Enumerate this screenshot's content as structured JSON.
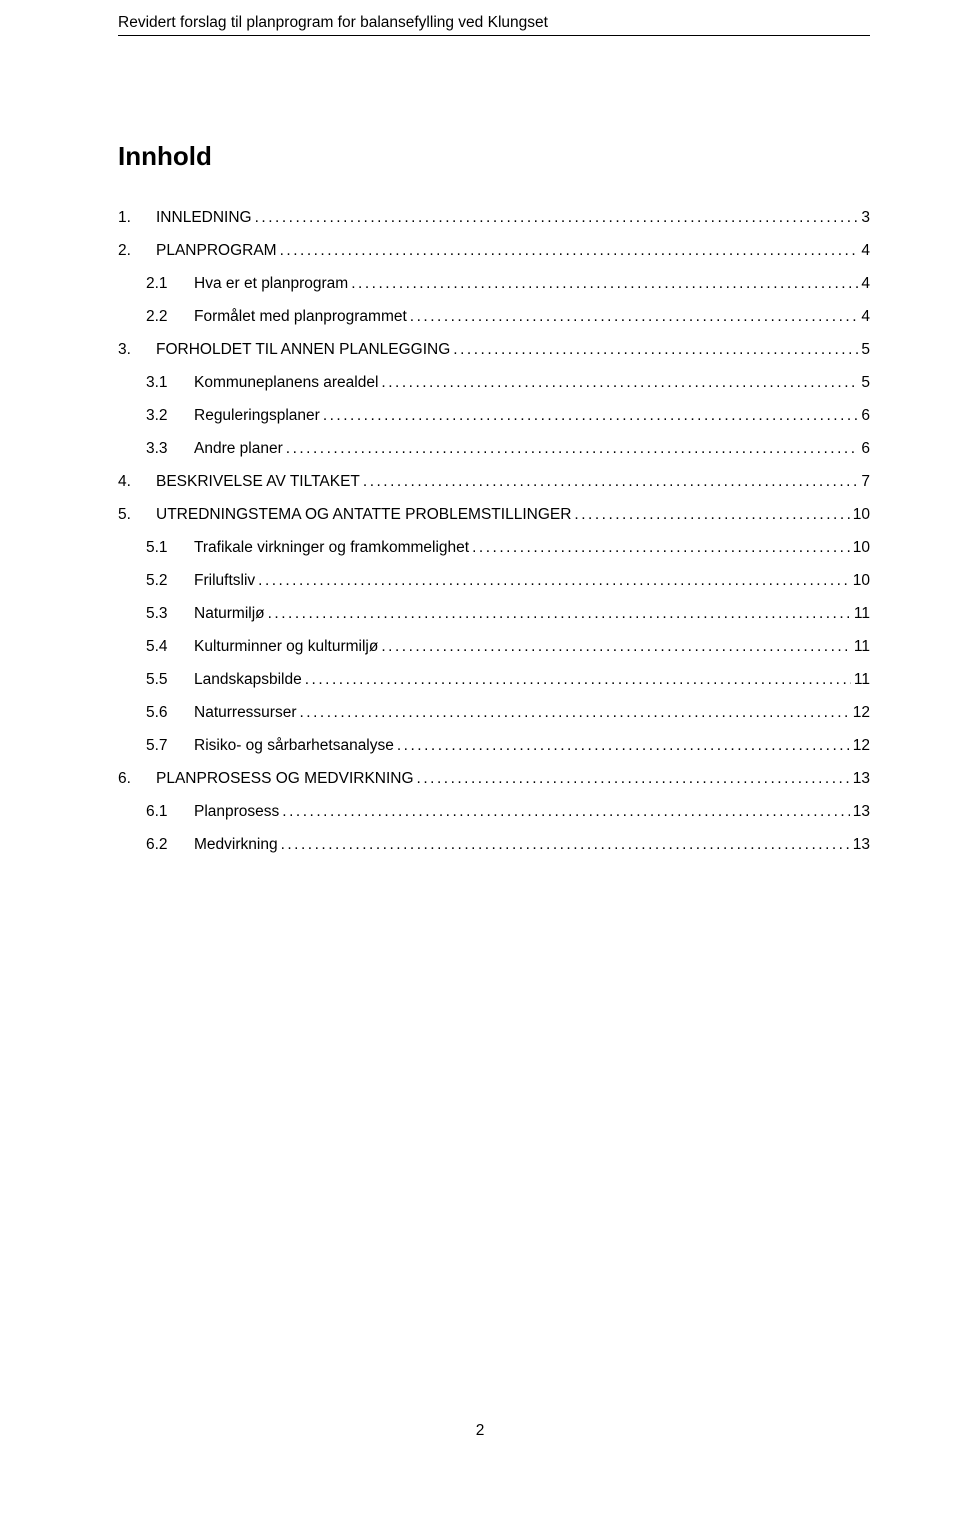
{
  "header": "Revidert forslag til planprogram for balansefylling ved Klungset",
  "title": "Innhold",
  "toc": [
    {
      "level": 1,
      "num": "1.",
      "label": "INNLEDNING",
      "page": "3"
    },
    {
      "level": 1,
      "num": "2.",
      "label": "PLANPROGRAM",
      "page": "4"
    },
    {
      "level": 2,
      "num": "2.1",
      "label": "Hva er et planprogram",
      "page": "4"
    },
    {
      "level": 2,
      "num": "2.2",
      "label": "Formålet med planprogrammet",
      "page": "4"
    },
    {
      "level": 1,
      "num": "3.",
      "label": "FORHOLDET TIL ANNEN PLANLEGGING",
      "page": "5"
    },
    {
      "level": 2,
      "num": "3.1",
      "label": "Kommuneplanens arealdel",
      "page": "5"
    },
    {
      "level": 2,
      "num": "3.2",
      "label": "Reguleringsplaner",
      "page": "6"
    },
    {
      "level": 2,
      "num": "3.3",
      "label": "Andre planer",
      "page": "6"
    },
    {
      "level": 1,
      "num": "4.",
      "label": "BESKRIVELSE AV TILTAKET",
      "page": "7"
    },
    {
      "level": 1,
      "num": "5.",
      "label": "UTREDNINGSTEMA OG ANTATTE PROBLEMSTILLINGER",
      "page": "10"
    },
    {
      "level": 2,
      "num": "5.1",
      "label": "Trafikale virkninger og framkommelighet",
      "page": "10"
    },
    {
      "level": 2,
      "num": "5.2",
      "label": "Friluftsliv",
      "page": "10"
    },
    {
      "level": 2,
      "num": "5.3",
      "label": "Naturmiljø",
      "page": "11"
    },
    {
      "level": 2,
      "num": "5.4",
      "label": "Kulturminner og kulturmiljø",
      "page": "11"
    },
    {
      "level": 2,
      "num": "5.5",
      "label": "Landskapsbilde",
      "page": "11"
    },
    {
      "level": 2,
      "num": "5.6",
      "label": "Naturressurser",
      "page": "12"
    },
    {
      "level": 2,
      "num": "5.7",
      "label": "Risiko- og sårbarhetsanalyse",
      "page": "12"
    },
    {
      "level": 1,
      "num": "6.",
      "label": "PLANPROSESS OG MEDVIRKNING",
      "page": "13"
    },
    {
      "level": 2,
      "num": "6.1",
      "label": "Planprosess",
      "page": "13"
    },
    {
      "level": 2,
      "num": "6.2",
      "label": "Medvirkning",
      "page": "13"
    }
  ],
  "page_number": "2"
}
